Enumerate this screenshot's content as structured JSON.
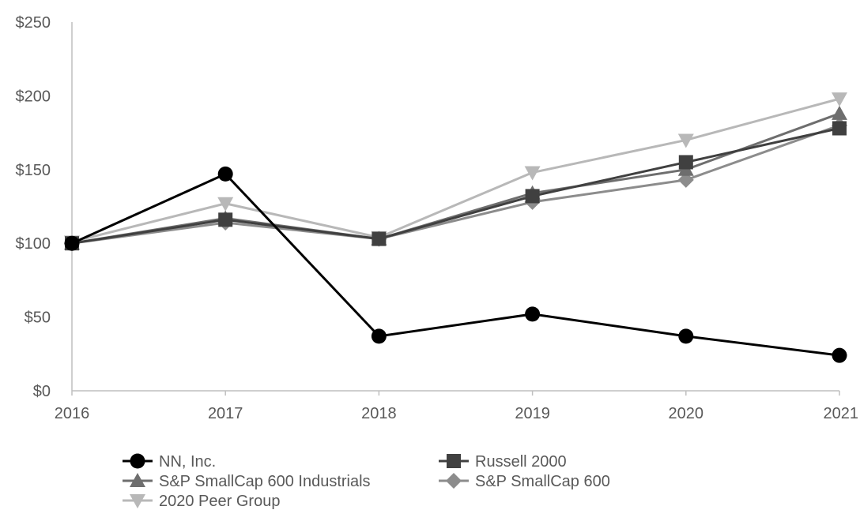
{
  "chart_data": {
    "type": "line",
    "x": [
      "2016",
      "2017",
      "2018",
      "2019",
      "2020",
      "2021"
    ],
    "ylim": [
      0,
      250
    ],
    "y_ticks": [
      "$0",
      "$50",
      "$100",
      "$150",
      "$200",
      "$250"
    ],
    "y_tick_values": [
      0,
      50,
      100,
      150,
      200,
      250
    ],
    "grid": false,
    "legend_position": "bottom",
    "series": [
      {
        "name": "NN, Inc.",
        "values": [
          100,
          147,
          37,
          52,
          37,
          24
        ],
        "marker": "circle",
        "color": "#000000"
      },
      {
        "name": "Russell 2000",
        "values": [
          100,
          116,
          103,
          132,
          155,
          178
        ],
        "marker": "square",
        "color": "#404040"
      },
      {
        "name": "S&P SmallCap 600 Industrials",
        "values": [
          100,
          117,
          103,
          134,
          150,
          188
        ],
        "marker": "triangle-up",
        "color": "#6e6e6e"
      },
      {
        "name": "S&P SmallCap 600",
        "values": [
          100,
          114,
          103,
          128,
          143,
          180
        ],
        "marker": "diamond",
        "color": "#8c8c8c"
      },
      {
        "name": "2020 Peer Group",
        "values": [
          101,
          127,
          104,
          148,
          170,
          198
        ],
        "marker": "triangle-down",
        "color": "#b8b8b8"
      }
    ]
  }
}
